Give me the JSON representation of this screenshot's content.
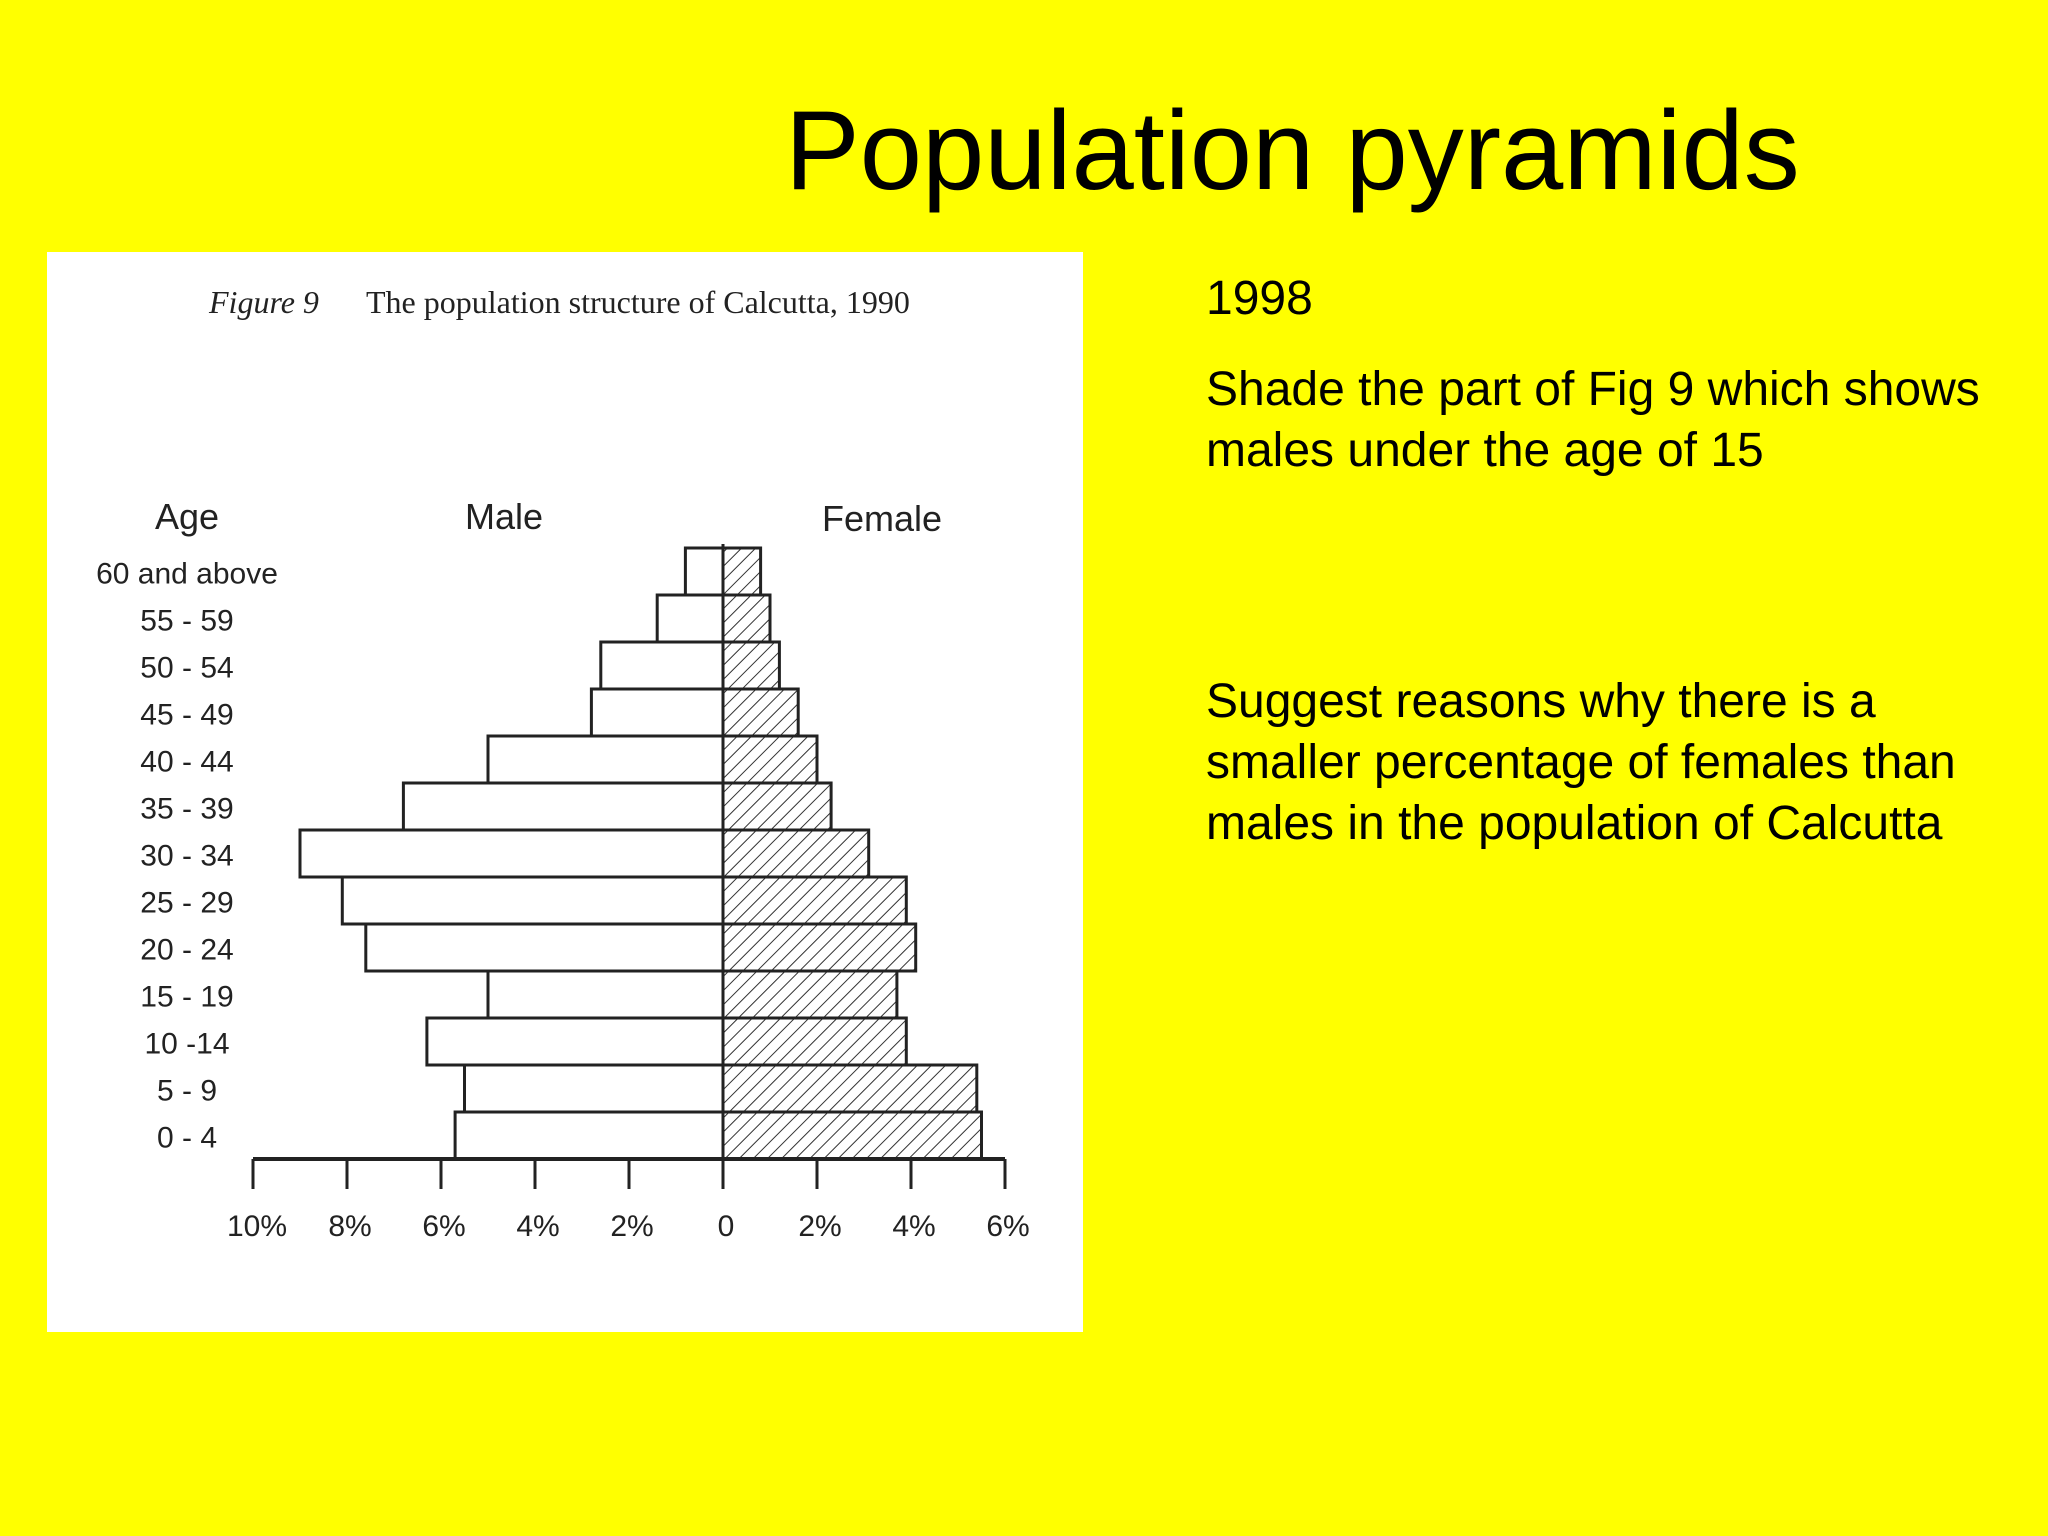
{
  "slide": {
    "title": "Population pyramids",
    "year": "1998",
    "question_1": "Shade the part of Fig 9 which shows males under the age of 15",
    "question_2": "Suggest reasons why there is a smaller percentage of females than males in the population of Calcutta"
  },
  "colors": {
    "background": "#FFFF00",
    "panel": "#FFFFFF",
    "ink": "#222222"
  },
  "chart_data": {
    "type": "bar",
    "orientation": "horizontal-pyramid",
    "figure_label": "Figure 9",
    "title": "The population structure of Calcutta, 1990",
    "age_axis_label": "Age",
    "categories": [
      "60 and above",
      "55 - 59",
      "50 - 54",
      "45 - 49",
      "40 - 44",
      "35 - 39",
      "30 - 34",
      "25 - 29",
      "20 - 24",
      "15 - 19",
      "10 -14",
      "5 - 9",
      "0 - 4"
    ],
    "series": [
      {
        "name": "Male",
        "side": "left",
        "fill": "none",
        "values": [
          0.8,
          1.4,
          2.6,
          2.8,
          5.0,
          6.8,
          9.0,
          8.1,
          7.6,
          5.0,
          6.3,
          5.5,
          5.7
        ]
      },
      {
        "name": "Female",
        "side": "right",
        "fill": "hatched",
        "values": [
          0.8,
          1.0,
          1.2,
          1.6,
          2.0,
          2.3,
          3.1,
          3.9,
          4.1,
          3.7,
          3.9,
          5.4,
          5.5
        ]
      }
    ],
    "x_ticks": [
      "10%",
      "8%",
      "6%",
      "4%",
      "2%",
      "0",
      "2%",
      "4%",
      "6%"
    ],
    "xlim_male": [
      0,
      10
    ],
    "xlim_female": [
      0,
      6
    ],
    "unit": "%"
  }
}
